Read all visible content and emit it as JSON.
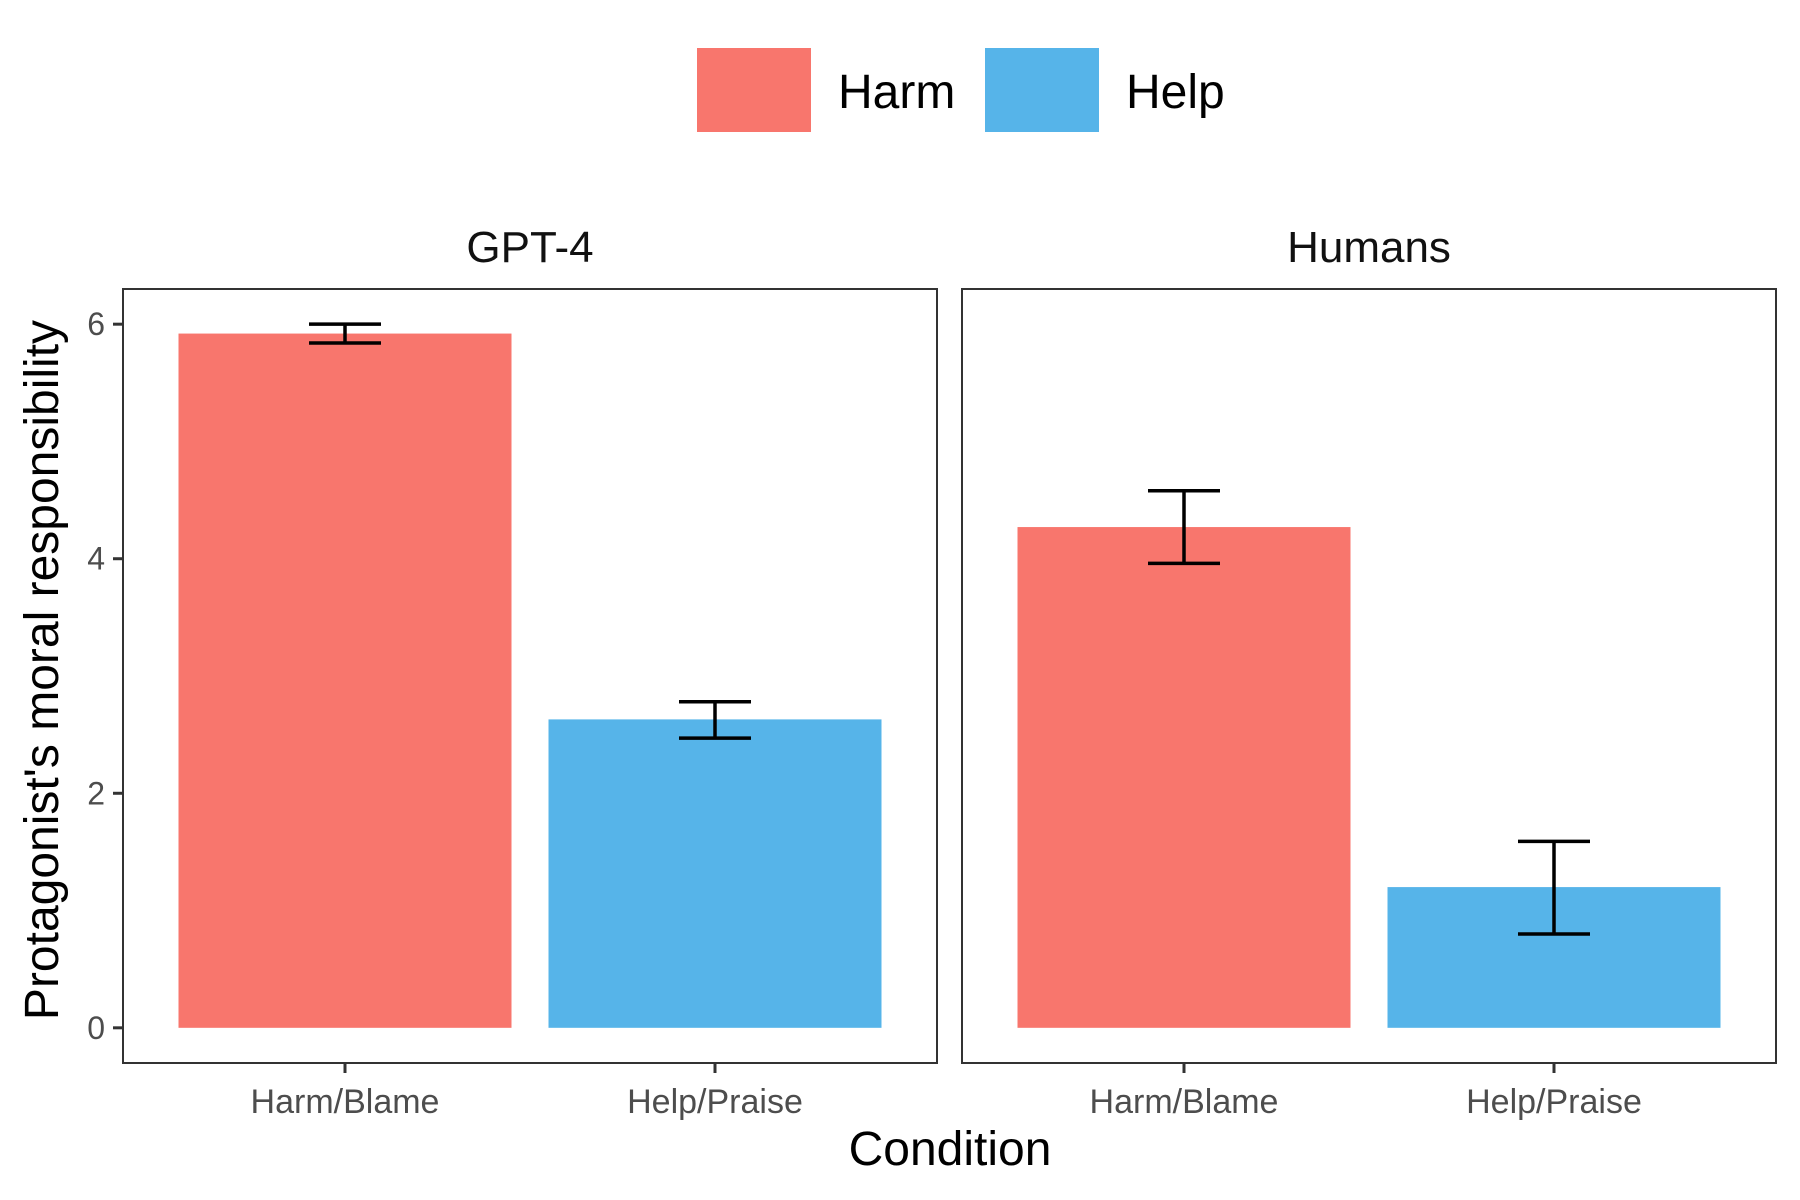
{
  "chart_data": {
    "type": "bar",
    "facets": [
      "GPT-4",
      "Humans"
    ],
    "categories": [
      "Harm/Blame",
      "Help/Praise"
    ],
    "ylabel": "Protagonist's moral responsibility",
    "xlabel": "Condition",
    "ylim": [
      -0.3,
      6.3
    ],
    "yticks": [
      "0",
      "2",
      "4",
      "6"
    ],
    "grid": false,
    "legend": {
      "position": "top",
      "entries": [
        {
          "label": "Harm",
          "color": "#F8766D"
        },
        {
          "label": "Help",
          "color": "#56B4E9"
        }
      ]
    },
    "panels": [
      {
        "title": "GPT-4",
        "bars": [
          {
            "category": "Harm/Blame",
            "group": "Harm",
            "value": 5.92,
            "err_low": 5.84,
            "err_high": 6.0
          },
          {
            "category": "Help/Praise",
            "group": "Help",
            "value": 2.63,
            "err_low": 2.47,
            "err_high": 2.78
          }
        ]
      },
      {
        "title": "Humans",
        "bars": [
          {
            "category": "Harm/Blame",
            "group": "Harm",
            "value": 4.27,
            "err_low": 3.96,
            "err_high": 4.58
          },
          {
            "category": "Help/Praise",
            "group": "Help",
            "value": 1.2,
            "err_low": 0.8,
            "err_high": 1.59
          }
        ]
      }
    ]
  }
}
